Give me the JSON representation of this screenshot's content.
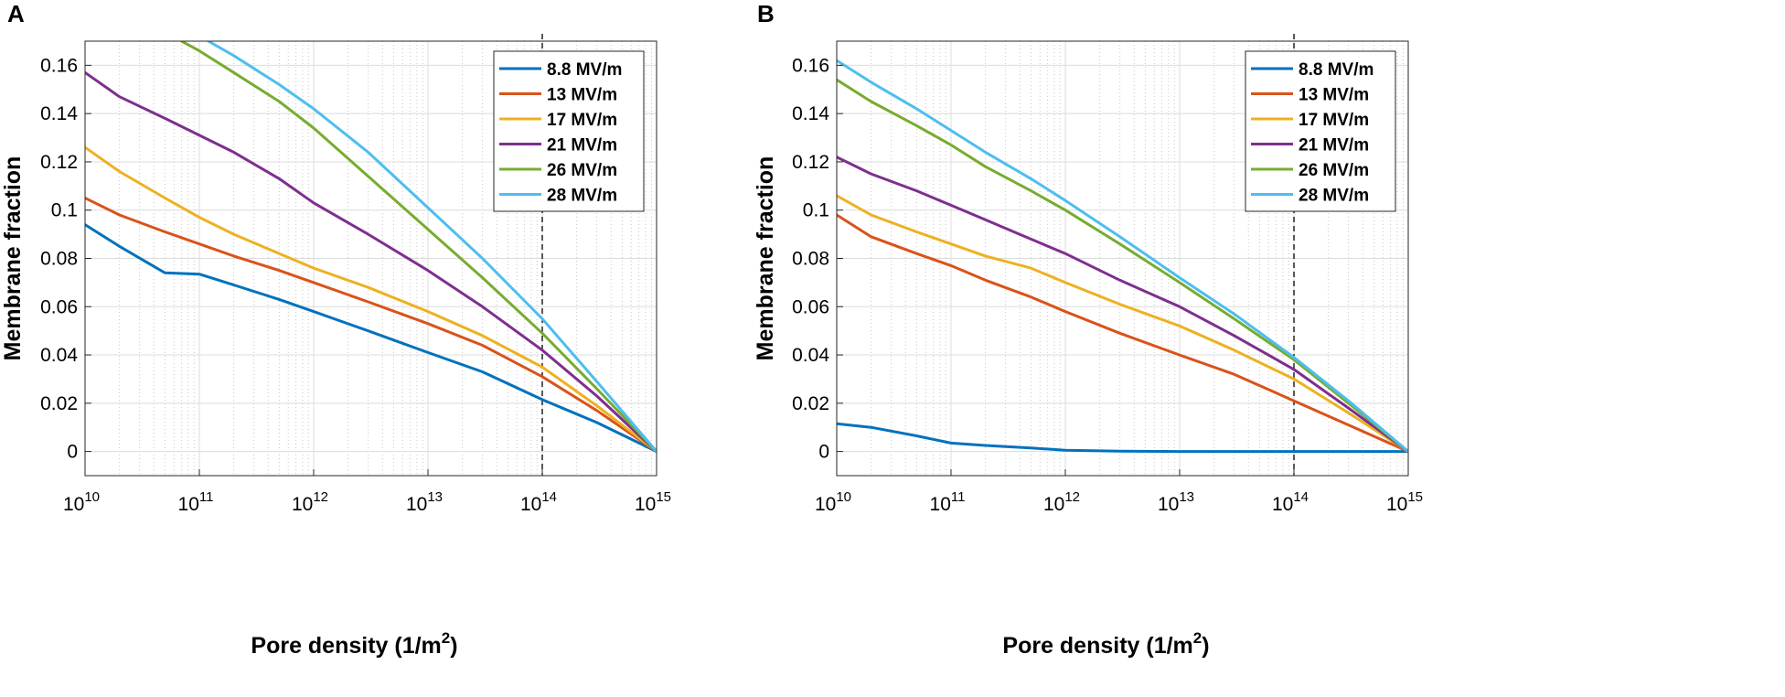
{
  "chart_data": [
    {
      "type": "line",
      "panel_label": "A",
      "xlabel": "Pore density (1/m",
      "xlabel_sup": "2",
      "xlabel_end": ")",
      "ylabel": "Membrane fraction",
      "xscale": "log",
      "xlim": [
        10000000000.0,
        1000000000000000.0
      ],
      "ylim": [
        -0.01,
        0.17
      ],
      "x_ticks": [
        10000000000.0,
        100000000000.0,
        1000000000000.0,
        10000000000000.0,
        100000000000000.0,
        1000000000000000.0
      ],
      "x_tick_exponents": [
        "10",
        "11",
        "12",
        "13",
        "14",
        "15"
      ],
      "x_tick_base": "10",
      "y_ticks": [
        0,
        0.02,
        0.04,
        0.06,
        0.08,
        0.1,
        0.12,
        0.14,
        0.16
      ],
      "y_tick_labels": [
        "0",
        "0.02",
        "0.04",
        "0.06",
        "0.08",
        "0.1",
        "0.12",
        "0.14",
        "0.16"
      ],
      "grid": true,
      "minor_grid": true,
      "reference_line_x": 100000000000000.0,
      "legend_position": "top-right",
      "series": [
        {
          "name": "8.8 MV/m",
          "color": "#0072BD",
          "points": [
            [
              10000000000.0,
              0.094
            ],
            [
              20000000000.0,
              0.085
            ],
            [
              50000000000.0,
              0.074
            ],
            [
              100000000000.0,
              0.0735
            ],
            [
              200000000000.0,
              0.069
            ],
            [
              500000000000.0,
              0.063
            ],
            [
              1000000000000.0,
              0.058
            ],
            [
              3000000000000.0,
              0.05
            ],
            [
              10000000000000.0,
              0.041
            ],
            [
              30000000000000.0,
              0.033
            ],
            [
              100000000000000.0,
              0.0215
            ],
            [
              300000000000000.0,
              0.012
            ],
            [
              1000000000000000.0,
              0
            ]
          ]
        },
        {
          "name": "13 MV/m",
          "color": "#D95319",
          "points": [
            [
              10000000000.0,
              0.105
            ],
            [
              20000000000.0,
              0.098
            ],
            [
              50000000000.0,
              0.091
            ],
            [
              100000000000.0,
              0.086
            ],
            [
              200000000000.0,
              0.081
            ],
            [
              500000000000.0,
              0.075
            ],
            [
              1000000000000.0,
              0.07
            ],
            [
              3000000000000.0,
              0.062
            ],
            [
              10000000000000.0,
              0.053
            ],
            [
              30000000000000.0,
              0.044
            ],
            [
              100000000000000.0,
              0.031
            ],
            [
              300000000000000.0,
              0.017
            ],
            [
              1000000000000000.0,
              0
            ]
          ]
        },
        {
          "name": "17 MV/m",
          "color": "#EDB120",
          "points": [
            [
              10000000000.0,
              0.126
            ],
            [
              20000000000.0,
              0.116
            ],
            [
              50000000000.0,
              0.105
            ],
            [
              100000000000.0,
              0.097
            ],
            [
              200000000000.0,
              0.09
            ],
            [
              500000000000.0,
              0.082
            ],
            [
              1000000000000.0,
              0.076
            ],
            [
              3000000000000.0,
              0.068
            ],
            [
              10000000000000.0,
              0.058
            ],
            [
              30000000000000.0,
              0.048
            ],
            [
              100000000000000.0,
              0.035
            ],
            [
              300000000000000.0,
              0.019
            ],
            [
              1000000000000000.0,
              0
            ]
          ]
        },
        {
          "name": "21 MV/m",
          "color": "#7E2F8E",
          "points": [
            [
              10000000000.0,
              0.157
            ],
            [
              20000000000.0,
              0.147
            ],
            [
              50000000000.0,
              0.138
            ],
            [
              100000000000.0,
              0.131
            ],
            [
              200000000000.0,
              0.124
            ],
            [
              500000000000.0,
              0.113
            ],
            [
              1000000000000.0,
              0.103
            ],
            [
              3000000000000.0,
              0.09
            ],
            [
              10000000000000.0,
              0.075
            ],
            [
              30000000000000.0,
              0.06
            ],
            [
              100000000000000.0,
              0.042
            ],
            [
              300000000000000.0,
              0.023
            ],
            [
              1000000000000000.0,
              0
            ]
          ]
        },
        {
          "name": "26 MV/m",
          "color": "#77AC30",
          "points": [
            [
              70000000000.0,
              0.17
            ],
            [
              100000000000.0,
              0.166
            ],
            [
              200000000000.0,
              0.157
            ],
            [
              500000000000.0,
              0.145
            ],
            [
              1000000000000.0,
              0.134
            ],
            [
              3000000000000.0,
              0.114
            ],
            [
              10000000000000.0,
              0.092
            ],
            [
              30000000000000.0,
              0.072
            ],
            [
              100000000000000.0,
              0.049
            ],
            [
              300000000000000.0,
              0.026
            ],
            [
              1000000000000000.0,
              0
            ]
          ]
        },
        {
          "name": "28 MV/m",
          "color": "#4DBEEE",
          "points": [
            [
              120000000000.0,
              0.17
            ],
            [
              200000000000.0,
              0.164
            ],
            [
              500000000000.0,
              0.152
            ],
            [
              1000000000000.0,
              0.142
            ],
            [
              3000000000000.0,
              0.124
            ],
            [
              10000000000000.0,
              0.101
            ],
            [
              30000000000000.0,
              0.08
            ],
            [
              100000000000000.0,
              0.055
            ],
            [
              300000000000000.0,
              0.029
            ],
            [
              1000000000000000.0,
              0
            ]
          ]
        }
      ]
    },
    {
      "type": "line",
      "panel_label": "B",
      "xlabel": "Pore density (1/m",
      "xlabel_sup": "2",
      "xlabel_end": ")",
      "ylabel": "Membrane fraction",
      "xscale": "log",
      "xlim": [
        10000000000.0,
        1000000000000000.0
      ],
      "ylim": [
        -0.01,
        0.17
      ],
      "x_ticks": [
        10000000000.0,
        100000000000.0,
        1000000000000.0,
        10000000000000.0,
        100000000000000.0,
        1000000000000000.0
      ],
      "x_tick_exponents": [
        "10",
        "11",
        "12",
        "13",
        "14",
        "15"
      ],
      "x_tick_base": "10",
      "y_ticks": [
        0,
        0.02,
        0.04,
        0.06,
        0.08,
        0.1,
        0.12,
        0.14,
        0.16
      ],
      "y_tick_labels": [
        "0",
        "0.02",
        "0.04",
        "0.06",
        "0.08",
        "0.1",
        "0.12",
        "0.14",
        "0.16"
      ],
      "grid": true,
      "minor_grid": true,
      "reference_line_x": 100000000000000.0,
      "legend_position": "top-right",
      "series": [
        {
          "name": "8.8 MV/m",
          "color": "#0072BD",
          "points": [
            [
              10000000000.0,
              0.0115
            ],
            [
              20000000000.0,
              0.01
            ],
            [
              50000000000.0,
              0.0065
            ],
            [
              100000000000.0,
              0.0035
            ],
            [
              200000000000.0,
              0.0025
            ],
            [
              500000000000.0,
              0.0015
            ],
            [
              1000000000000.0,
              0.0005
            ],
            [
              3000000000000.0,
              0.0001
            ],
            [
              10000000000000.0,
              0
            ],
            [
              100000000000000.0,
              0
            ],
            [
              1000000000000000.0,
              0
            ]
          ]
        },
        {
          "name": "13 MV/m",
          "color": "#D95319",
          "points": [
            [
              10000000000.0,
              0.098
            ],
            [
              20000000000.0,
              0.089
            ],
            [
              50000000000.0,
              0.082
            ],
            [
              100000000000.0,
              0.077
            ],
            [
              200000000000.0,
              0.071
            ],
            [
              500000000000.0,
              0.064
            ],
            [
              1000000000000.0,
              0.058
            ],
            [
              3000000000000.0,
              0.049
            ],
            [
              10000000000000.0,
              0.04
            ],
            [
              30000000000000.0,
              0.032
            ],
            [
              100000000000000.0,
              0.021
            ],
            [
              300000000000000.0,
              0.011
            ],
            [
              1000000000000000.0,
              0
            ]
          ]
        },
        {
          "name": "17 MV/m",
          "color": "#EDB120",
          "points": [
            [
              10000000000.0,
              0.106
            ],
            [
              20000000000.0,
              0.098
            ],
            [
              50000000000.0,
              0.091
            ],
            [
              100000000000.0,
              0.086
            ],
            [
              200000000000.0,
              0.081
            ],
            [
              500000000000.0,
              0.076
            ],
            [
              1000000000000.0,
              0.07
            ],
            [
              3000000000000.0,
              0.061
            ],
            [
              10000000000000.0,
              0.052
            ],
            [
              30000000000000.0,
              0.042
            ],
            [
              100000000000000.0,
              0.03
            ],
            [
              300000000000000.0,
              0.016
            ],
            [
              1000000000000000.0,
              0
            ]
          ]
        },
        {
          "name": "21 MV/m",
          "color": "#7E2F8E",
          "points": [
            [
              10000000000.0,
              0.122
            ],
            [
              20000000000.0,
              0.115
            ],
            [
              50000000000.0,
              0.108
            ],
            [
              100000000000.0,
              0.102
            ],
            [
              200000000000.0,
              0.096
            ],
            [
              500000000000.0,
              0.088
            ],
            [
              1000000000000.0,
              0.082
            ],
            [
              3000000000000.0,
              0.071
            ],
            [
              10000000000000.0,
              0.06
            ],
            [
              30000000000000.0,
              0.048
            ],
            [
              100000000000000.0,
              0.034
            ],
            [
              300000000000000.0,
              0.018
            ],
            [
              1000000000000000.0,
              0
            ]
          ]
        },
        {
          "name": "26 MV/m",
          "color": "#77AC30",
          "points": [
            [
              10000000000.0,
              0.154
            ],
            [
              20000000000.0,
              0.145
            ],
            [
              50000000000.0,
              0.135
            ],
            [
              100000000000.0,
              0.127
            ],
            [
              200000000000.0,
              0.118
            ],
            [
              500000000000.0,
              0.108
            ],
            [
              1000000000000.0,
              0.1
            ],
            [
              3000000000000.0,
              0.086
            ],
            [
              10000000000000.0,
              0.07
            ],
            [
              30000000000000.0,
              0.055
            ],
            [
              100000000000000.0,
              0.038
            ],
            [
              300000000000000.0,
              0.02
            ],
            [
              1000000000000000.0,
              0
            ]
          ]
        },
        {
          "name": "28 MV/m",
          "color": "#4DBEEE",
          "points": [
            [
              10000000000.0,
              0.162
            ],
            [
              20000000000.0,
              0.153
            ],
            [
              50000000000.0,
              0.142
            ],
            [
              100000000000.0,
              0.133
            ],
            [
              200000000000.0,
              0.124
            ],
            [
              500000000000.0,
              0.113
            ],
            [
              1000000000000.0,
              0.104
            ],
            [
              3000000000000.0,
              0.089
            ],
            [
              10000000000000.0,
              0.072
            ],
            [
              30000000000000.0,
              0.057
            ],
            [
              100000000000000.0,
              0.039
            ],
            [
              300000000000000.0,
              0.021
            ],
            [
              1000000000000000.0,
              0
            ]
          ]
        }
      ]
    }
  ]
}
